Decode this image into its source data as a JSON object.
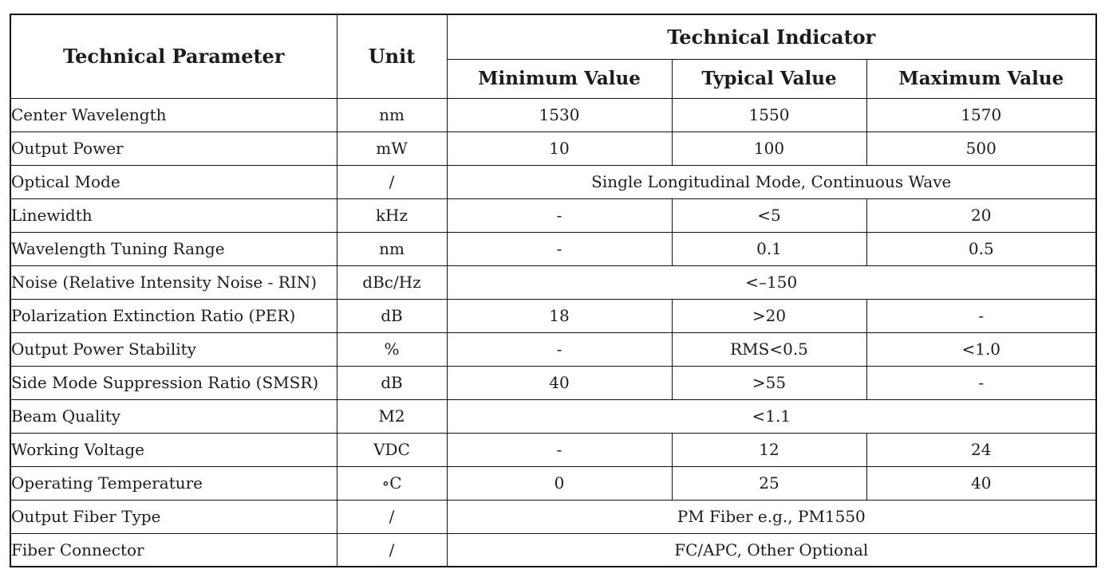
{
  "table": {
    "header": {
      "param_label": "Technical Parameter",
      "unit_label": "Unit",
      "indicator_label": "Technical Indicator",
      "min_label": "Minimum Value",
      "typ_label": "Typical Value",
      "max_label": "Maximum Value"
    },
    "rows": [
      {
        "param": "Center Wavelength",
        "unit": "nm",
        "min": "1530",
        "typ": "1550",
        "max": "1570"
      },
      {
        "param": "Output Power",
        "unit": "mW",
        "min": "10",
        "typ": "100",
        "max": "500"
      },
      {
        "param": "Optical Mode",
        "unit": "/",
        "span": "Single Longitudinal Mode, Continuous Wave"
      },
      {
        "param": "Linewidth",
        "unit": "kHz",
        "min": "-",
        "typ": "<5",
        "max": "20"
      },
      {
        "param": "Wavelength Tuning Range",
        "unit": "nm",
        "min": "-",
        "typ": "0.1",
        "max": "0.5"
      },
      {
        "param": "Noise (Relative Intensity Noise - RIN)",
        "unit": "dBc/Hz",
        "span": "<–150"
      },
      {
        "param": "Polarization Extinction Ratio (PER)",
        "unit": "dB",
        "min": "18",
        "typ": ">20",
        "max": "-"
      },
      {
        "param": "Output Power Stability",
        "unit": "%",
        "min": "-",
        "typ": "RMS<0.5",
        "max": "<1.0"
      },
      {
        "param": "Side Mode Suppression Ratio (SMSR)",
        "unit": "dB",
        "min": "40",
        "typ": ">55",
        "max": "-"
      },
      {
        "param": "Beam Quality",
        "unit": "M2",
        "span": "<1.1"
      },
      {
        "param": "Working Voltage",
        "unit": "VDC",
        "min": "-",
        "typ": "12",
        "max": "24"
      },
      {
        "param": "Operating Temperature",
        "unit": "∘C",
        "min": "0",
        "typ": "25",
        "max": "40"
      },
      {
        "param": "Output Fiber Type",
        "unit": "/",
        "span": "PM Fiber e.g., PM1550"
      },
      {
        "param": "Fiber Connector",
        "unit": "/",
        "span": "FC/APC, Other Optional"
      }
    ],
    "colors": {
      "border": "#111111",
      "text": "#1c1c1c",
      "background": "#ffffff"
    }
  }
}
